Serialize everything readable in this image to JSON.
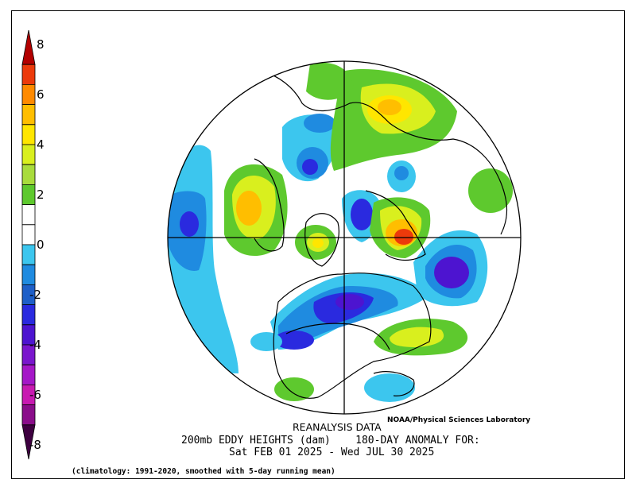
{
  "colorbar": {
    "ticks": [
      "8",
      "6",
      "4",
      "2",
      "0",
      "-2",
      "-4",
      "-6",
      "-8"
    ],
    "colors": [
      "#b30000",
      "#ec3a0b",
      "#ff8a00",
      "#ffbe00",
      "#ffe600",
      "#d9ef1e",
      "#a9dc3c",
      "#5ec92e",
      "#ffffff",
      "#ffffff",
      "#3cc6ee",
      "#1f8be0",
      "#1e5fc8",
      "#2a2adf",
      "#4d14d0",
      "#7a16cd",
      "#a517c8",
      "#c81ab1",
      "#8a0d8a",
      "#3e0040"
    ]
  },
  "map": {
    "projection": "north-polar-stereographic",
    "colors": {
      "ocean": "#ffffff",
      "outline": "#000000"
    }
  },
  "titles": {
    "line1": "REANALYSIS DATA",
    "line2": "200mb EDDY HEIGHTS (dam)    180-DAY ANOMALY FOR:",
    "line3": "Sat FEB 01 2025 - Wed JUL 30 2025",
    "credit": "NOAA/Physical Sciences Laboratory",
    "climatology": "(climatology: 1991-2020, smoothed with 5-day running mean)"
  }
}
